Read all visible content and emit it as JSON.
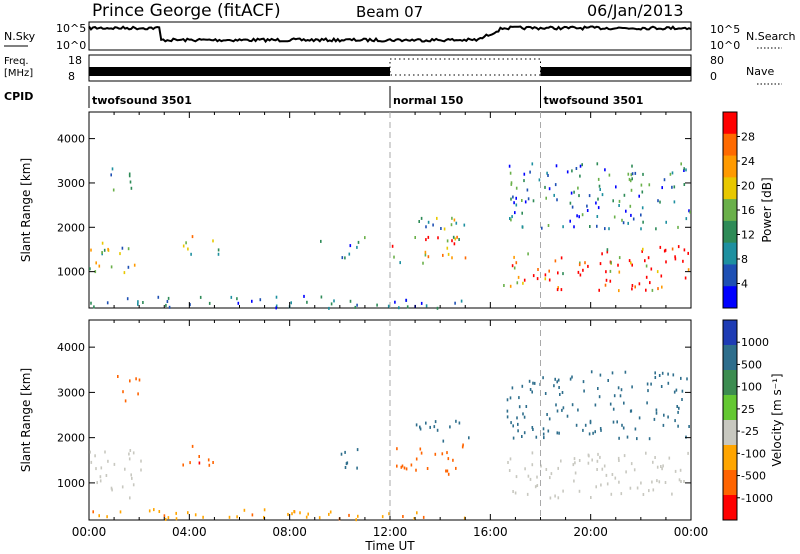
{
  "header": {
    "station": "Prince George (fitACF)",
    "beam": "Beam 07",
    "date": "06/Jan/2013"
  },
  "top_panels": {
    "nsky_label": "N.Sky",
    "nsky_ticks": [
      "10^5",
      "10^0"
    ],
    "nsearch_label": "N.Search",
    "nsearch_ticks": [
      "10^5",
      "10^0"
    ],
    "freq_label": "Freq.",
    "freq_unit": "[MHz]",
    "freq_ticks": [
      "18",
      "8"
    ],
    "nave_label": "Nave",
    "nave_ticks": [
      "80",
      "0"
    ],
    "cpid_label": "CPID",
    "cpid_segments": [
      {
        "label": "twofsound 3501",
        "start_h": 0,
        "end_h": 12
      },
      {
        "label": "normal 150",
        "start_h": 12,
        "end_h": 18
      },
      {
        "label": "twofsound 3501",
        "start_h": 18,
        "end_h": 24
      }
    ]
  },
  "chart_data": [
    {
      "type": "heatmap",
      "title": "",
      "xlabel": "",
      "ylabel": "Slant Range [km]",
      "xlim": [
        0,
        24
      ],
      "ylim": [
        180,
        4600
      ],
      "x_ticks": [
        "00:00",
        "04:00",
        "08:00",
        "12:00",
        "16:00",
        "20:00",
        "00:00"
      ],
      "y_ticks": [
        1000,
        2000,
        3000,
        4000
      ],
      "vlines_h": [
        12,
        18
      ],
      "colorbar": {
        "label": "Power [dB]",
        "ticks": [
          "28",
          "24",
          "20",
          "16",
          "12",
          "8",
          "4"
        ],
        "colors": [
          "#ff0000",
          "#ff6a00",
          "#ff9a00",
          "#e8c800",
          "#6ab04a",
          "#2e8b57",
          "#1e90a0",
          "#1e50b4",
          "#0000ff"
        ]
      },
      "regions": [
        {
          "t0": 0.0,
          "t1": 2.2,
          "r0": 1000,
          "r1": 1750,
          "v": 14
        },
        {
          "t0": 0.8,
          "t1": 1.8,
          "r0": 2800,
          "r1": 3400,
          "v": 9
        },
        {
          "t0": 3.7,
          "t1": 5.2,
          "r0": 1400,
          "r1": 1850,
          "v": 18
        },
        {
          "t0": 9.0,
          "t1": 9.3,
          "r0": 1600,
          "r1": 1900,
          "v": 10
        },
        {
          "t0": 10.0,
          "t1": 11.0,
          "r0": 1300,
          "r1": 1950,
          "v": 9
        },
        {
          "t0": 12.0,
          "t1": 15.0,
          "r0": 1200,
          "r1": 1900,
          "v": 22
        },
        {
          "t0": 13.0,
          "t1": 15.5,
          "r0": 1950,
          "r1": 2400,
          "v": 14
        },
        {
          "t0": 16.5,
          "t1": 24.0,
          "r0": 600,
          "r1": 1600,
          "v": 26
        },
        {
          "t0": 16.5,
          "t1": 24.0,
          "r0": 2000,
          "r1": 3500,
          "v": 10
        },
        {
          "t0": 0.0,
          "t1": 15.0,
          "r0": 200,
          "r1": 480,
          "v": 8
        }
      ]
    },
    {
      "type": "heatmap",
      "title": "",
      "xlabel": "Time UT",
      "ylabel": "Slant Range [km]",
      "xlim": [
        0,
        24
      ],
      "ylim": [
        180,
        4600
      ],
      "x_ticks": [
        "00:00",
        "04:00",
        "08:00",
        "12:00",
        "16:00",
        "20:00",
        "00:00"
      ],
      "y_ticks": [
        1000,
        2000,
        3000,
        4000
      ],
      "vlines_h": [
        12,
        18
      ],
      "colorbar": {
        "label": "Velocity [m s⁻¹]",
        "ticks": [
          "1000",
          "500",
          "100",
          "25",
          "-25",
          "-100",
          "-500",
          "-1000"
        ],
        "colors": [
          "#1e3cb4",
          "#2e6e8c",
          "#3c8c50",
          "#64c832",
          "#c8c8c0",
          "#ffa500",
          "#ff6400",
          "#ff0000"
        ]
      },
      "regions": [
        {
          "t0": 0.0,
          "t1": 2.2,
          "r0": 700,
          "r1": 1750,
          "v": 0
        },
        {
          "t0": 1.0,
          "t1": 2.0,
          "r0": 2800,
          "r1": 3400,
          "v": -150
        },
        {
          "t0": 3.7,
          "t1": 5.2,
          "r0": 1400,
          "r1": 1850,
          "v": -400
        },
        {
          "t0": 10.0,
          "t1": 11.0,
          "r0": 1300,
          "r1": 1950,
          "v": 200
        },
        {
          "t0": 12.0,
          "t1": 15.0,
          "r0": 1200,
          "r1": 1900,
          "v": -200
        },
        {
          "t0": 13.0,
          "t1": 15.5,
          "r0": 1950,
          "r1": 2400,
          "v": 150
        },
        {
          "t0": 16.5,
          "t1": 24.0,
          "r0": 700,
          "r1": 1700,
          "v": 0
        },
        {
          "t0": 16.5,
          "t1": 24.0,
          "r0": 2000,
          "r1": 3500,
          "v": 300
        },
        {
          "t0": 0.0,
          "t1": 15.0,
          "r0": 200,
          "r1": 450,
          "v": -80
        }
      ]
    }
  ]
}
